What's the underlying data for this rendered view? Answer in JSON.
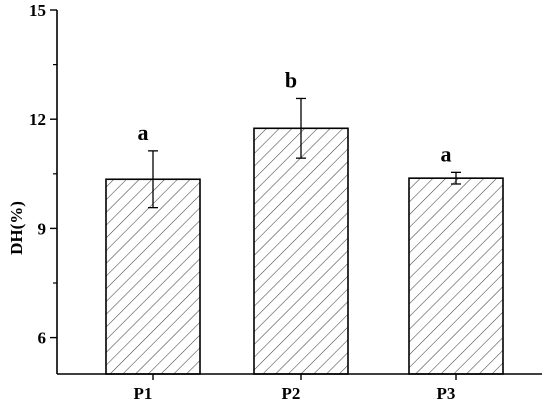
{
  "chart_data": {
    "type": "bar",
    "categories": [
      "P1",
      "P2",
      "P3"
    ],
    "values": [
      10.35,
      11.75,
      10.38
    ],
    "errors": [
      0.78,
      0.82,
      0.16
    ],
    "significance_letters": [
      "a",
      "b",
      "a"
    ],
    "title": "",
    "xlabel": "",
    "ylabel": "DH(%)",
    "ylim": [
      5,
      15
    ],
    "yticks": [
      6,
      9,
      12,
      15
    ],
    "ytick_labels": [
      "6",
      "9",
      "12",
      "15"
    ],
    "bar_fill": "diagonal-hatch",
    "grid": false,
    "legend": "none"
  }
}
